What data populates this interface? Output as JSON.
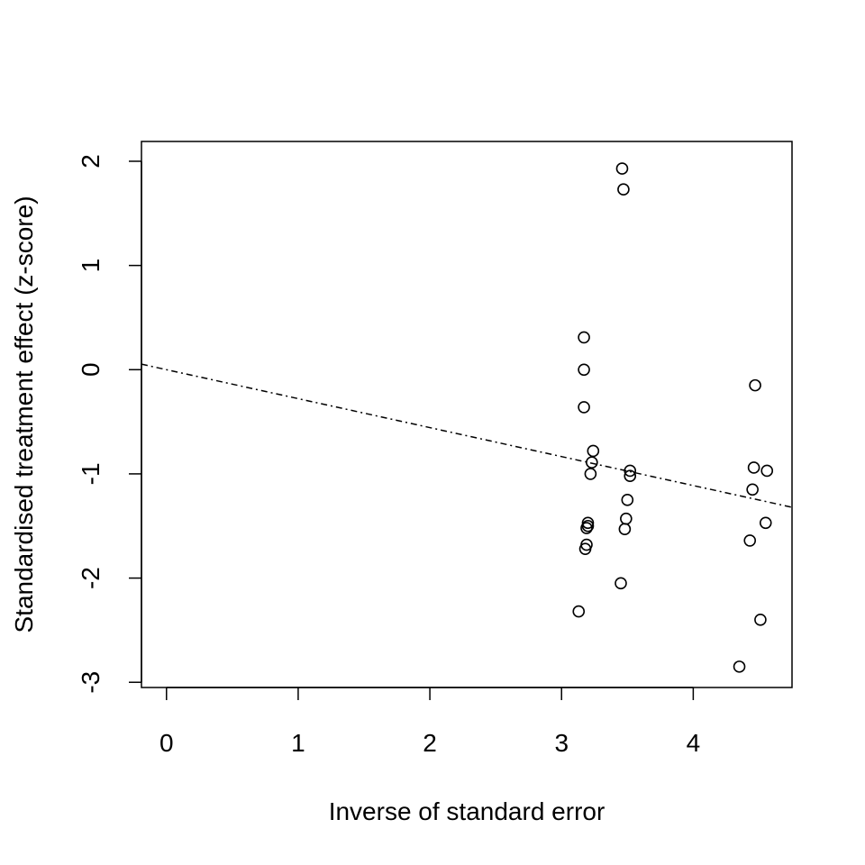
{
  "chart_data": {
    "type": "scatter",
    "title": "",
    "xlabel": "Inverse of standard error",
    "ylabel": "Standardised treatment effect (z-score)",
    "xlim": [
      -0.19,
      4.75
    ],
    "ylim": [
      -3.05,
      2.19
    ],
    "x_ticks": [
      0,
      1,
      2,
      3,
      4
    ],
    "x_tick_labels": [
      "0",
      "1",
      "2",
      "3",
      "4"
    ],
    "y_ticks": [
      -3,
      -2,
      -1,
      0,
      1,
      2
    ],
    "y_tick_labels": [
      "-3",
      "-2",
      "-1",
      "0",
      "1",
      "2"
    ],
    "grid": false,
    "legend": "none",
    "regression_line": {
      "style": "dash-dot",
      "intercept": 0,
      "slope": -0.278
    },
    "series": [
      {
        "marker": "open-circle",
        "x": [
          3.46,
          3.47,
          3.17,
          3.17,
          3.17,
          3.24,
          3.23,
          3.22,
          3.52,
          3.52,
          3.5,
          3.49,
          3.48,
          3.2,
          3.2,
          3.19,
          3.19,
          3.18,
          3.45,
          3.13,
          4.47,
          4.46,
          4.56,
          4.45,
          4.55,
          4.43,
          4.51,
          4.35
        ],
        "y": [
          1.93,
          1.73,
          0.31,
          0.0,
          -0.36,
          -0.78,
          -0.89,
          -1.0,
          -0.97,
          -1.02,
          -1.25,
          -1.43,
          -1.53,
          -1.47,
          -1.5,
          -1.52,
          -1.68,
          -1.72,
          -2.05,
          -2.32,
          -0.15,
          -0.94,
          -0.97,
          -1.15,
          -1.47,
          -1.64,
          -2.4,
          -2.85
        ]
      }
    ]
  }
}
